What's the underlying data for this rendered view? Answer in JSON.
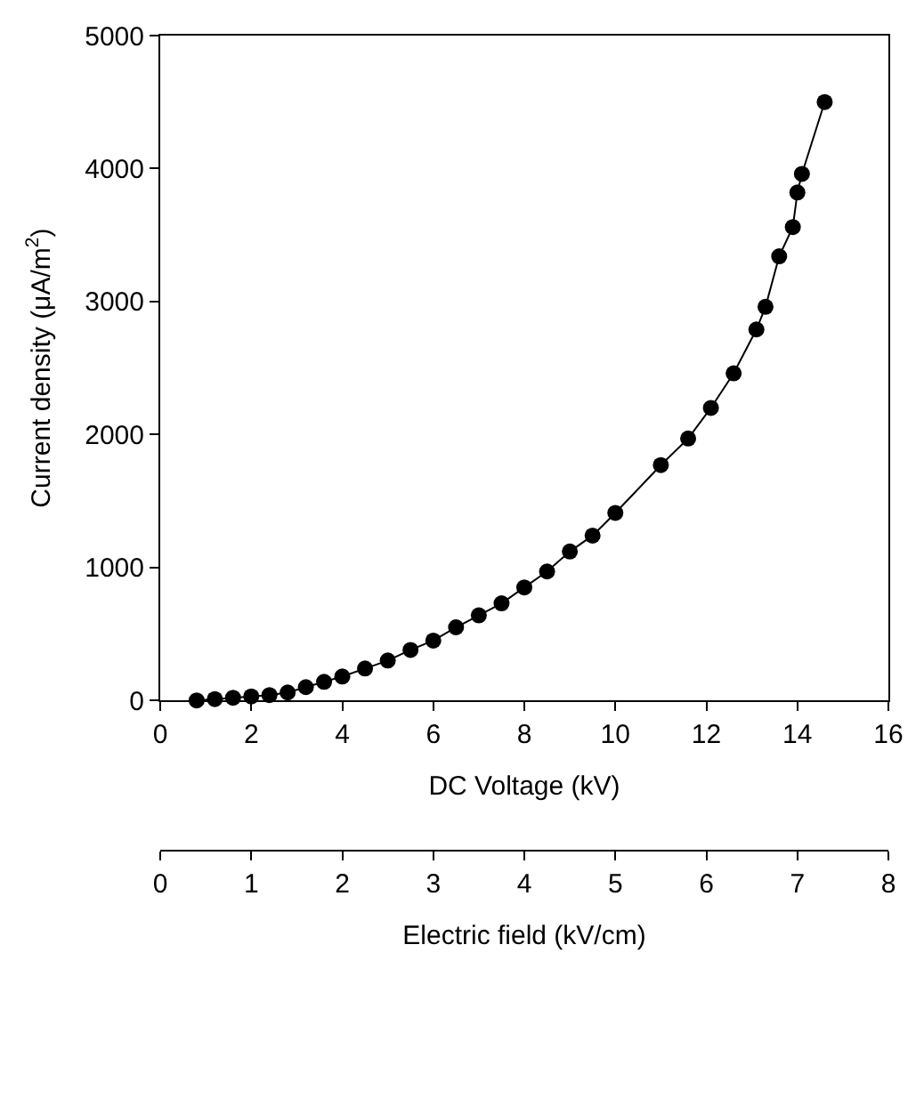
{
  "chart_data": {
    "type": "line",
    "xlabel": "DC Voltage (kV)",
    "ylabel": "Current density (μA/m$^{2}$)",
    "x2label": "Electric field (kV/cm)",
    "x": [
      0.8,
      1.2,
      1.6,
      2.0,
      2.4,
      2.8,
      3.2,
      3.6,
      4.0,
      4.5,
      5.0,
      5.5,
      6.0,
      6.5,
      7.0,
      7.5,
      8.0,
      8.5,
      9.0,
      9.5,
      10.0,
      11.0,
      11.6,
      12.1,
      12.6,
      13.1,
      13.3,
      13.6,
      13.9,
      14.0,
      14.1,
      14.6
    ],
    "series": [
      {
        "color": "#000000",
        "values": [
          0,
          10,
          20,
          30,
          40,
          60,
          100,
          140,
          180,
          240,
          300,
          380,
          450,
          550,
          640,
          730,
          850,
          970,
          1120,
          1240,
          1410,
          1770,
          1970,
          2200,
          2460,
          2790,
          2960,
          3340,
          3560,
          3820,
          3960,
          4500
        ]
      }
    ],
    "marker": "circle",
    "line_style": "solid",
    "legend": false,
    "xlim": [
      0,
      16
    ],
    "xticks": [
      0,
      2,
      4,
      6,
      8,
      10,
      12,
      14,
      16
    ],
    "ylim": [
      0,
      5000
    ],
    "yticks": [
      0,
      1000,
      2000,
      3000,
      4000,
      5000
    ],
    "x2lim": [
      0,
      8
    ],
    "x2ticks": [
      0,
      1,
      2,
      3,
      4,
      5,
      6,
      7,
      8
    ]
  }
}
